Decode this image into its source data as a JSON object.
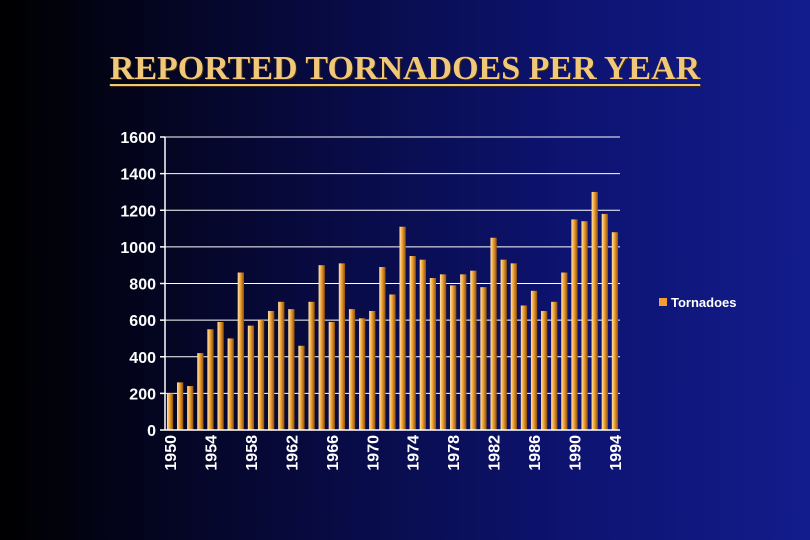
{
  "title": "REPORTED TORNADOES PER YEAR",
  "colors": {
    "bar": "#f0a030",
    "bar_highlight": "#ffe6b0",
    "gridline": "#ffffff",
    "axis": "#ffffff",
    "text": "#ffffff",
    "title": "#f0c878"
  },
  "chart_data": {
    "type": "bar",
    "title": "REPORTED TORNADOES PER YEAR",
    "categories": [
      "1950",
      "1951",
      "1952",
      "1953",
      "1954",
      "1955",
      "1956",
      "1957",
      "1958",
      "1959",
      "1960",
      "1961",
      "1962",
      "1963",
      "1964",
      "1965",
      "1966",
      "1967",
      "1968",
      "1969",
      "1970",
      "1971",
      "1972",
      "1973",
      "1974",
      "1975",
      "1976",
      "1977",
      "1978",
      "1979",
      "1980",
      "1981",
      "1982",
      "1983",
      "1984",
      "1985",
      "1986",
      "1987",
      "1988",
      "1989",
      "1990",
      "1991",
      "1992",
      "1993",
      "1994"
    ],
    "x_tick_labels": [
      "1950",
      "1954",
      "1958",
      "1962",
      "1966",
      "1970",
      "1974",
      "1978",
      "1982",
      "1986",
      "1990",
      "1994"
    ],
    "series": [
      {
        "name": "Tornadoes",
        "values": [
          200,
          260,
          240,
          420,
          550,
          590,
          500,
          860,
          570,
          600,
          650,
          700,
          660,
          460,
          700,
          900,
          590,
          910,
          660,
          610,
          650,
          890,
          740,
          1110,
          950,
          930,
          830,
          850,
          790,
          850,
          870,
          780,
          1050,
          930,
          910,
          680,
          760,
          650,
          700,
          860,
          1150,
          1140,
          1300,
          1180,
          1080
        ]
      }
    ],
    "y_tick_labels": [
      "0",
      "200",
      "400",
      "600",
      "800",
      "1000",
      "1200",
      "1400",
      "1600"
    ],
    "ylim": [
      0,
      1600
    ],
    "grid": true,
    "legend_position": "right"
  }
}
